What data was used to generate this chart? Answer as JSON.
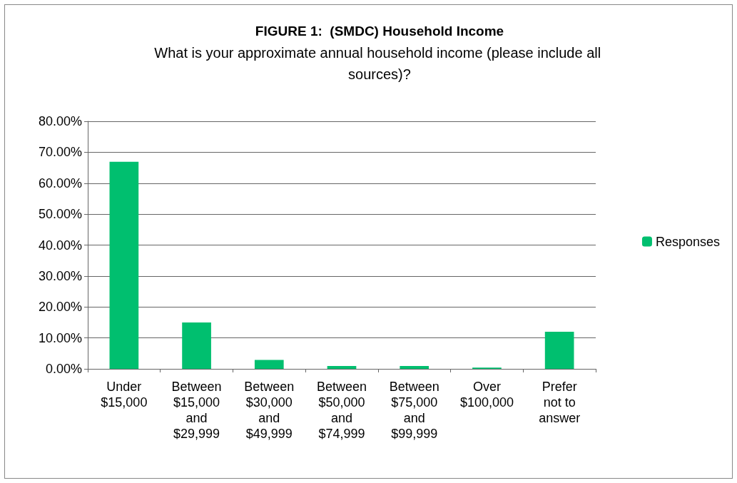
{
  "chart_data": {
    "type": "bar",
    "title": "FIGURE 1:  (SMDC) Household Income",
    "subtitle": "What is your approximate annual household income (please include all sources)?",
    "categories": [
      "Under $15,000",
      "Between $15,000 and $29,999",
      "Between $30,000 and $49,999",
      "Between $50,000 and $74,999",
      "Between $75,000 and $99,999",
      "Over $100,000",
      "Prefer not to answer"
    ],
    "series": [
      {
        "name": "Responses",
        "color": "#00bf6f",
        "values": [
          66.9,
          15.0,
          2.9,
          0.9,
          0.9,
          0.4,
          12.0
        ]
      }
    ],
    "ylim": [
      0,
      80
    ],
    "yticks": [
      {
        "value": 0,
        "label": "0.00%"
      },
      {
        "value": 10,
        "label": "10.00%"
      },
      {
        "value": 20,
        "label": "20.00%"
      },
      {
        "value": 30,
        "label": "30.00%"
      },
      {
        "value": 40,
        "label": "40.00%"
      },
      {
        "value": 50,
        "label": "50.00%"
      },
      {
        "value": 60,
        "label": "60.00%"
      },
      {
        "value": 70,
        "label": "70.00%"
      },
      {
        "value": 80,
        "label": "80.00%"
      }
    ],
    "grid": "y",
    "legend": "right"
  }
}
